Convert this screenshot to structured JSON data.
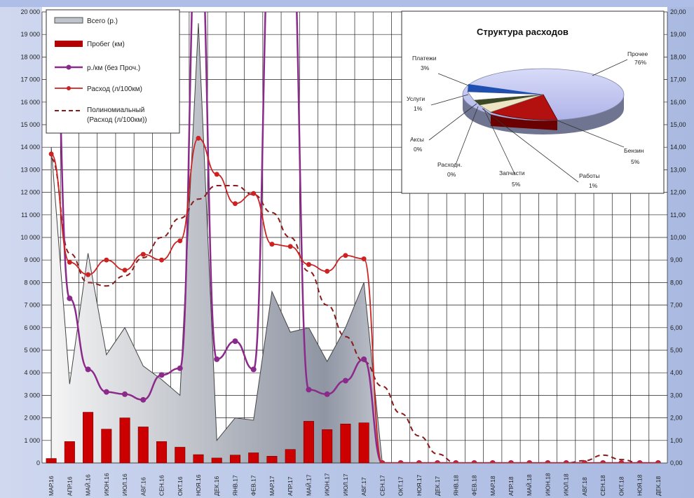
{
  "chart_data": {
    "type": "bar",
    "categories": [
      "МАР.16",
      "АПР.16",
      "МАЙ.16",
      "ИЮН.16",
      "ИЮЛ.16",
      "АВГ.16",
      "СЕН.16",
      "ОКТ.16",
      "НОЯ.16",
      "ДЕК.16",
      "ЯНВ.17",
      "ФЕВ.17",
      "МАР.17",
      "АПР.17",
      "МАЙ.17",
      "ИЮН.17",
      "ИЮЛ.17",
      "АВГ.17",
      "СЕН.17",
      "ОКТ.17",
      "НОЯ.17",
      "ДЕК.17",
      "ЯНВ.18",
      "ФЕВ.18",
      "МАР.18",
      "АПР.18",
      "МАЙ.18",
      "ИЮН.18",
      "ИЮЛ.18",
      "АВГ.18",
      "СЕН.18",
      "ОКТ.18",
      "НОЯ.18",
      "ДЕК.18"
    ],
    "y_left_ticks": [
      "20 000",
      "19 000",
      "18 000",
      "17 000",
      "16 000",
      "15 000",
      "14 000",
      "13 000",
      "12 000",
      "11 000",
      "10 000",
      "9 000",
      "8 000",
      "7 000",
      "6 000",
      "5 000",
      "4 000",
      "3 000",
      "2 000",
      "1 000",
      "0"
    ],
    "y_right_ticks": [
      "20,00",
      "19,00",
      "18,00",
      "17,00",
      "16,00",
      "15,00",
      "14,00",
      "13,00",
      "12,00",
      "11,00",
      "10,00",
      "9,00",
      "8,00",
      "7,00",
      "6,00",
      "5,00",
      "4,00",
      "3,00",
      "2,00",
      "1,00",
      "0,00"
    ],
    "ylim_left": [
      0,
      20000
    ],
    "ylim_right": [
      0,
      20
    ],
    "grid": true,
    "series": [
      {
        "name": "Всего (р.)",
        "kind": "area",
        "axis": "left",
        "values": [
          14000,
          3500,
          9300,
          4800,
          6000,
          4300,
          3700,
          3000,
          19500,
          1000,
          2000,
          1900,
          7600,
          5800,
          6000,
          4500,
          6000,
          8000,
          0,
          0,
          0,
          0,
          0,
          0,
          0,
          0,
          0,
          0,
          0,
          0,
          0,
          0,
          0,
          0
        ]
      },
      {
        "name": "Пробег (км)",
        "kind": "bar",
        "axis": "left",
        "values": [
          200,
          950,
          2250,
          1500,
          2000,
          1600,
          950,
          700,
          370,
          220,
          350,
          450,
          300,
          600,
          1850,
          1480,
          1730,
          1780,
          0,
          0,
          0,
          0,
          0,
          0,
          0,
          0,
          0,
          0,
          0,
          0,
          0,
          0,
          0,
          0
        ]
      },
      {
        "name": "р./км (без Проч.)",
        "kind": "line",
        "axis": "right",
        "values": [
          24,
          7.3,
          4.15,
          3.15,
          3.05,
          2.8,
          3.9,
          4.2,
          25,
          4.6,
          5.4,
          4.15,
          25,
          25,
          3.25,
          3.05,
          3.65,
          4.6,
          0,
          0,
          0,
          0,
          0,
          0,
          0,
          0,
          0,
          0,
          0,
          0,
          0,
          0,
          0,
          0
        ]
      },
      {
        "name": "Расход (л/100км)",
        "kind": "line",
        "axis": "right",
        "values": [
          13.7,
          8.9,
          8.35,
          9.0,
          8.55,
          9.25,
          9.0,
          9.85,
          14.4,
          12.8,
          11.5,
          11.95,
          9.7,
          9.6,
          8.8,
          8.5,
          9.2,
          9.05,
          0,
          0,
          0,
          0,
          0,
          0,
          0,
          0,
          0,
          0,
          0,
          0,
          0,
          0,
          0,
          0
        ]
      },
      {
        "name": "Полиномиальный (Расход (л/100км))",
        "kind": "trend",
        "axis": "right",
        "values": [
          13.5,
          9.3,
          8.0,
          7.85,
          8.3,
          9.1,
          10.0,
          10.85,
          11.7,
          12.3,
          12.3,
          11.9,
          11.1,
          10.0,
          8.5,
          7.0,
          5.6,
          4.5,
          3.4,
          2.2,
          1.2,
          0.4,
          0,
          0,
          0,
          0,
          0,
          0,
          0,
          0.1,
          0.35,
          0.15,
          0,
          0
        ]
      }
    ],
    "legend": [
      {
        "label": "Всего (р.)"
      },
      {
        "label": "Пробег (км)"
      },
      {
        "label": "р./км (без Проч.)"
      },
      {
        "label": "Расход (л/100км)"
      },
      {
        "label": "Полиномиальный"
      },
      {
        "label": "(Расход (л/100км))"
      }
    ],
    "pie": {
      "type": "pie",
      "title": "Структура расходов",
      "slices": [
        {
          "name": "Прочее",
          "value": 76,
          "label": "Прочее",
          "pct": "76%"
        },
        {
          "name": "Бензин",
          "value": 5,
          "label": "Бензин",
          "pct": "5%"
        },
        {
          "name": "Работы",
          "value": 1,
          "label": "Работы",
          "pct": "1%"
        },
        {
          "name": "Запчасти",
          "value": 5,
          "label": "Запчасти",
          "pct": "5%"
        },
        {
          "name": "Расходн.",
          "value": 0,
          "label": "Расходн.",
          "pct": "0%"
        },
        {
          "name": "Аксы",
          "value": 0,
          "label": "Аксы",
          "pct": "0%"
        },
        {
          "name": "Услуги",
          "value": 1,
          "label": "Услуги",
          "pct": "1%"
        },
        {
          "name": "Платежи",
          "value": 3,
          "label": "Платежи",
          "pct": "3%"
        }
      ]
    }
  },
  "colors": {
    "area_top": "#f2f2f2",
    "area_dark": "#8a8f9c",
    "bar": "#cc0000",
    "rub_km": "#8b2a8b",
    "rashod": "#cc2222",
    "trend": "#8b1a1a",
    "pie_other": "#c9cdf5",
    "pie_fuel": "#b31010",
    "pie_parts": "#ece6c2",
    "pie_work": "#556b2f",
    "pie_pay": "#1f4fb0"
  }
}
